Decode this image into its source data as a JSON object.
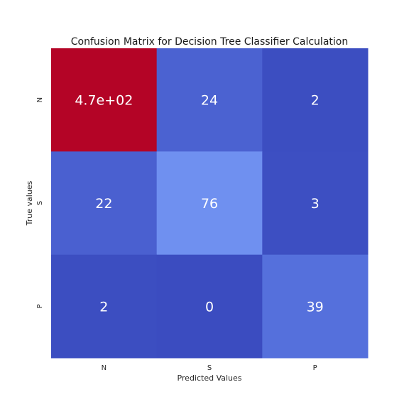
{
  "chart_data": {
    "type": "heatmap",
    "title": "Confusion Matrix for Decision Tree Classifier Calculation",
    "xlabel": "Predicted Values",
    "ylabel": "True values",
    "x_categories": [
      "N",
      "S",
      "P"
    ],
    "y_categories": [
      "N",
      "S",
      "P"
    ],
    "values": [
      [
        470,
        24,
        2
      ],
      [
        22,
        76,
        3
      ],
      [
        2,
        0,
        39
      ]
    ],
    "annotations": [
      [
        "4.7e+02",
        "24",
        "2"
      ],
      [
        "22",
        "76",
        "3"
      ],
      [
        "2",
        "0",
        "39"
      ]
    ],
    "colormap": "coolwarm",
    "colorbar": false,
    "grid": false
  }
}
